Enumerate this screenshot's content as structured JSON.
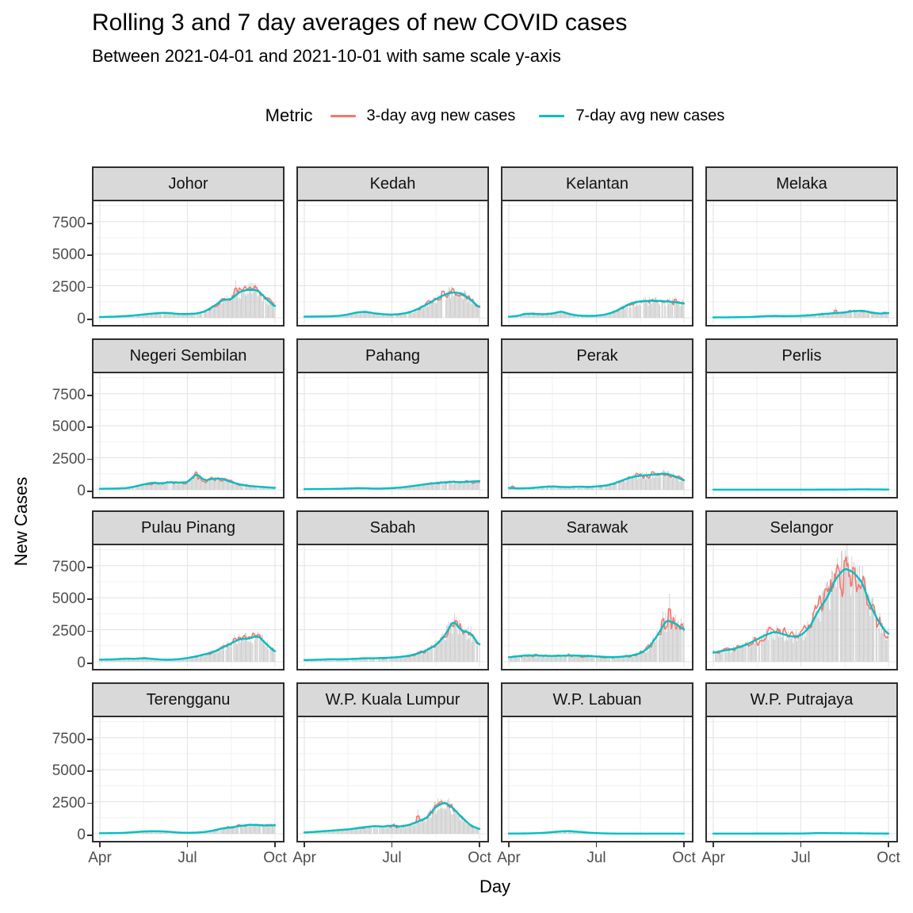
{
  "title": "Rolling 3 and 7 day averages of new COVID cases",
  "subtitle": "Between 2021-04-01 and 2021-10-01 with same scale y-axis",
  "legend": {
    "title": "Metric",
    "items": [
      {
        "label": "3-day avg new cases",
        "color": "#F8766D"
      },
      {
        "label": "7-day avg new cases",
        "color": "#00BFC4"
      }
    ]
  },
  "axes": {
    "x_label": "Day",
    "y_label": "New Cases",
    "x_ticks": [
      "Apr",
      "Jul",
      "Oct"
    ],
    "y_ticks": [
      "7500",
      "5000",
      "2500",
      "0"
    ],
    "y_tick_values": [
      7500,
      5000,
      2500,
      0
    ],
    "y_minor_values": [
      8750,
      6250,
      3750,
      1250
    ],
    "ylim": [
      0,
      9350
    ]
  },
  "colors": {
    "avg3": "#F8766D",
    "avg7": "#00BFC4",
    "bar": "#C9C9C9",
    "strip_bg": "#D9D9D9",
    "panel_border": "#2E2E2E",
    "grid_major": "#E4E4E4",
    "grid_minor": "#F1F1F1",
    "tick_text": "#4D4D4D"
  },
  "chart_data": {
    "type": "bar",
    "note": "Faceted daily new-case bars with 3-day (red) and 7-day (teal) rolling average lines; avg7 sampled at even intervals t=0..1 (2021-04-01 to 2021-10-01), same y scale on all 16 facets",
    "x_range": [
      "2021-04-01",
      "2021-10-01"
    ],
    "t_step": 0.05,
    "series_names": [
      "3-day avg new cases",
      "7-day avg new cases"
    ],
    "facets": [
      {
        "name": "Johor",
        "amp": 0.1,
        "avg7": [
          60,
          80,
          100,
          140,
          190,
          260,
          330,
          390,
          370,
          300,
          290,
          330,
          500,
          900,
          1400,
          1450,
          2050,
          2200,
          2150,
          1500,
          850
        ],
        "spikes": [
          {
            "t": 0.775,
            "v": 2950
          }
        ]
      },
      {
        "name": "Kedah",
        "amp": 0.1,
        "avg7": [
          90,
          100,
          110,
          120,
          160,
          260,
          420,
          470,
          350,
          280,
          250,
          300,
          420,
          700,
          1050,
          1450,
          1800,
          2000,
          1900,
          1400,
          800
        ],
        "spikes": [
          {
            "t": 0.79,
            "v": 2450
          }
        ]
      },
      {
        "name": "Kelantan",
        "amp": 0.09,
        "avg7": [
          80,
          150,
          330,
          300,
          280,
          330,
          500,
          280,
          170,
          150,
          160,
          250,
          450,
          800,
          1150,
          1280,
          1330,
          1330,
          1280,
          1230,
          1100
        ],
        "spikes": [
          {
            "t": 0.95,
            "v": 1680
          }
        ]
      },
      {
        "name": "Melaka",
        "amp": 0.12,
        "avg7": [
          30,
          35,
          40,
          50,
          60,
          90,
          130,
          150,
          130,
          140,
          160,
          200,
          260,
          320,
          380,
          420,
          520,
          560,
          430,
          330,
          380
        ],
        "spikes": [
          {
            "t": 0.7,
            "v": 830
          }
        ]
      },
      {
        "name": "Negeri Sembilan",
        "amp": 0.13,
        "avg7": [
          80,
          90,
          100,
          130,
          250,
          420,
          550,
          500,
          600,
          560,
          580,
          1250,
          720,
          880,
          850,
          600,
          420,
          300,
          250,
          200,
          150
        ],
        "spikes": [
          {
            "t": 0.55,
            "v": 1550
          }
        ]
      },
      {
        "name": "Pahang",
        "amp": 0.1,
        "avg7": [
          50,
          55,
          60,
          70,
          80,
          100,
          130,
          120,
          90,
          100,
          130,
          180,
          260,
          350,
          450,
          520,
          580,
          620,
          590,
          640,
          680
        ],
        "spikes": []
      },
      {
        "name": "Perak",
        "amp": 0.11,
        "avg7": [
          150,
          110,
          120,
          160,
          230,
          260,
          220,
          210,
          250,
          220,
          260,
          320,
          480,
          750,
          980,
          1100,
          1150,
          1220,
          1260,
          1050,
          720
        ],
        "spikes": [
          {
            "t": 0.02,
            "v": 430
          }
        ]
      },
      {
        "name": "Perlis",
        "amp": 0.15,
        "avg7": [
          12,
          10,
          10,
          10,
          12,
          12,
          12,
          12,
          12,
          12,
          12,
          12,
          15,
          15,
          15,
          20,
          30,
          35,
          30,
          25,
          20
        ],
        "spikes": []
      },
      {
        "name": "Pulau Pinang",
        "amp": 0.1,
        "avg7": [
          160,
          180,
          200,
          250,
          230,
          280,
          230,
          170,
          160,
          200,
          290,
          420,
          580,
          780,
          1100,
          1450,
          1780,
          1800,
          2050,
          1400,
          750
        ],
        "spikes": [
          {
            "t": 0.77,
            "v": 2100
          },
          {
            "t": 0.905,
            "v": 2350
          }
        ]
      },
      {
        "name": "Sabah",
        "amp": 0.09,
        "avg7": [
          130,
          150,
          170,
          200,
          190,
          210,
          240,
          280,
          270,
          300,
          330,
          380,
          480,
          650,
          900,
          1300,
          2000,
          3200,
          2400,
          2250,
          1250
        ],
        "spikes": [
          {
            "t": 0.87,
            "v": 3500
          }
        ]
      },
      {
        "name": "Sarawak",
        "amp": 0.13,
        "avg7": [
          350,
          430,
          500,
          490,
          470,
          450,
          470,
          490,
          480,
          450,
          420,
          380,
          360,
          400,
          480,
          650,
          1100,
          2100,
          3250,
          3000,
          2500
        ],
        "spikes": [
          {
            "t": 0.88,
            "v": 3950
          },
          {
            "t": 0.92,
            "v": 5300
          }
        ]
      },
      {
        "name": "Selangor",
        "amp": 0.13,
        "avg7": [
          700,
          850,
          950,
          1150,
          1400,
          1750,
          2100,
          2350,
          2150,
          1950,
          2050,
          2700,
          4000,
          5000,
          6500,
          7300,
          7000,
          6200,
          4300,
          3000,
          2100
        ],
        "spikes": [
          {
            "t": 0.71,
            "v": 8100
          },
          {
            "t": 0.755,
            "v": 8700
          },
          {
            "t": 0.8,
            "v": 7800
          }
        ]
      },
      {
        "name": "Terengganu",
        "amp": 0.1,
        "avg7": [
          40,
          45,
          50,
          80,
          130,
          180,
          200,
          190,
          150,
          90,
          70,
          90,
          140,
          260,
          420,
          500,
          600,
          700,
          680,
          640,
          660
        ],
        "spikes": []
      },
      {
        "name": "W.P. Kuala Lumpur",
        "amp": 0.11,
        "avg7": [
          100,
          140,
          190,
          240,
          290,
          340,
          430,
          530,
          600,
          560,
          640,
          560,
          700,
          950,
          1250,
          2100,
          2450,
          2000,
          1250,
          650,
          350
        ],
        "spikes": [
          {
            "t": 0.65,
            "v": 1900
          },
          {
            "t": 0.78,
            "v": 2750
          }
        ]
      },
      {
        "name": "W.P. Labuan",
        "amp": 0.12,
        "avg7": [
          15,
          20,
          25,
          40,
          70,
          130,
          190,
          200,
          150,
          90,
          50,
          25,
          15,
          12,
          10,
          10,
          10,
          10,
          10,
          10,
          12
        ],
        "spikes": []
      },
      {
        "name": "W.P. Putrajaya",
        "amp": 0.12,
        "avg7": [
          10,
          10,
          12,
          12,
          14,
          15,
          15,
          15,
          15,
          18,
          20,
          30,
          55,
          45,
          40,
          38,
          35,
          30,
          22,
          18,
          15
        ],
        "spikes": []
      }
    ]
  }
}
